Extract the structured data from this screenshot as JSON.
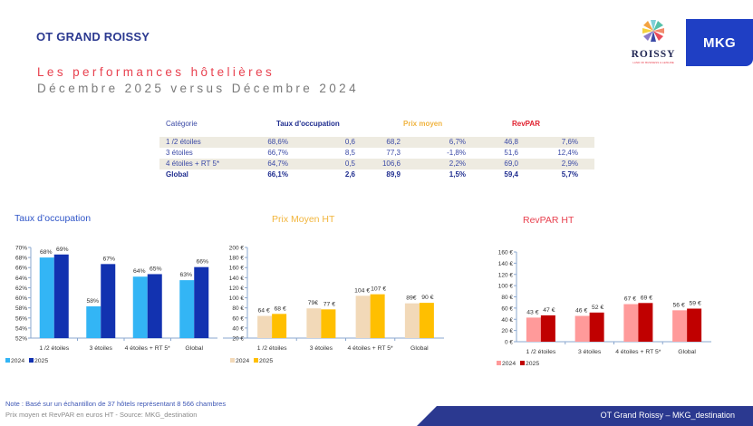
{
  "header": {
    "brand_title": "OT GRAND ROISSY",
    "subtitle_line1": "Les performances hôtelières",
    "subtitle_line2": "Décembre 2025 versus Décembre 2024"
  },
  "logos": {
    "roissy": {
      "name": "ROISSY",
      "tagline": "LAND OF BUSINESS & LEISURE"
    },
    "mkg": {
      "name": "MKG",
      "color": "#1f3fc4"
    }
  },
  "table": {
    "headers": {
      "category": "Catégorie",
      "occupancy": "Taux d'occupation",
      "avg_price": "Prix moyen",
      "revpar": "RevPAR"
    },
    "header_colors": {
      "occupancy": "#1f2d8f",
      "avg_price": "#f0b441",
      "revpar": "#e01f2d"
    },
    "rows": [
      {
        "category": "1 /2 étoiles",
        "occ": "68,6%",
        "occ_var": "0,6",
        "price": "68,2",
        "price_var": "6,7%",
        "revpar": "46,8",
        "revpar_var": "7,6%"
      },
      {
        "category": "3 étoiles",
        "occ": "66,7%",
        "occ_var": "8,5",
        "price": "77,3",
        "price_var": "-1,8%",
        "revpar": "51,6",
        "revpar_var": "12,4%"
      },
      {
        "category": "4 étoiles + RT 5*",
        "occ": "64,7%",
        "occ_var": "0,5",
        "price": "106,6",
        "price_var": "2,2%",
        "revpar": "69,0",
        "revpar_var": "2,9%"
      },
      {
        "category": "Global",
        "occ": "66,1%",
        "occ_var": "2,6",
        "price": "89,9",
        "price_var": "1,5%",
        "revpar": "59,4",
        "revpar_var": "5,7%"
      }
    ]
  },
  "chart_data": [
    {
      "type": "bar",
      "title": "Taux d’occupation",
      "title_color": "#2f55c8",
      "categories": [
        "1 /2 étoiles",
        "3 étoiles",
        "4 étoiles + RT 5*",
        "Global"
      ],
      "series": [
        {
          "name": "2024",
          "color": "#33b5f5",
          "values": [
            68,
            58,
            64,
            63
          ],
          "labels": [
            "68%",
            "58%",
            "64%",
            "63%"
          ],
          "plot_values": [
            68.0,
            58.3,
            64.2,
            63.5
          ]
        },
        {
          "name": "2025",
          "color": "#1232b0",
          "values": [
            69,
            67,
            65,
            66
          ],
          "labels": [
            "69%",
            "67%",
            "65%",
            "66%"
          ],
          "plot_values": [
            68.6,
            66.7,
            64.7,
            66.1
          ]
        }
      ],
      "ylim": [
        52,
        70
      ],
      "yticks": [
        "52%",
        "54%",
        "56%",
        "58%",
        "60%",
        "62%",
        "64%",
        "66%",
        "68%",
        "70%"
      ],
      "ytick_values": [
        52,
        54,
        56,
        58,
        60,
        62,
        64,
        66,
        68,
        70
      ],
      "legend": "bottom-left",
      "grid": false
    },
    {
      "type": "bar",
      "title": "Prix Moyen HT",
      "title_color": "#f2b53c",
      "categories": [
        "1 /2 étoiles",
        "3 étoiles",
        "4 étoiles + RT 5*",
        "Global"
      ],
      "series": [
        {
          "name": "2024",
          "color": "#f2d9b8",
          "values": [
            64,
            79,
            104,
            89
          ],
          "labels": [
            "64 €",
            "79€",
            "104 €",
            "89€"
          ]
        },
        {
          "name": "2025",
          "color": "#ffbf00",
          "values": [
            68,
            77,
            107,
            90
          ],
          "labels": [
            "68 €",
            "77 €",
            "107 €",
            "90 €"
          ]
        }
      ],
      "ylim": [
        20,
        200
      ],
      "yticks": [
        "20 €",
        "40 €",
        "60 €",
        "80 €",
        "100 €",
        "120 €",
        "140 €",
        "160 €",
        "180 €",
        "200 €"
      ],
      "ytick_values": [
        20,
        40,
        60,
        80,
        100,
        120,
        140,
        160,
        180,
        200
      ],
      "legend": "bottom-left",
      "grid": false
    },
    {
      "type": "bar",
      "title": "RevPAR HT",
      "title_color": "#e8414f",
      "categories": [
        "1 /2 étoiles",
        "3 étoiles",
        "4 étoiles + RT 5*",
        "Global"
      ],
      "series": [
        {
          "name": "2024",
          "color": "#ff9a9a",
          "values": [
            43,
            46,
            67,
            56
          ],
          "labels": [
            "43 €",
            "46 €",
            "67 €",
            "56 €"
          ]
        },
        {
          "name": "2025",
          "color": "#c00000",
          "values": [
            47,
            52,
            69,
            59
          ],
          "labels": [
            "47 €",
            "52 €",
            "69 €",
            "59 €"
          ]
        }
      ],
      "ylim": [
        0,
        160
      ],
      "yticks": [
        "0 €",
        "20 €",
        "40 €",
        "60 €",
        "80 €",
        "100 €",
        "120 €",
        "140 €",
        "160 €"
      ],
      "ytick_values": [
        0,
        20,
        40,
        60,
        80,
        100,
        120,
        140,
        160
      ],
      "legend": "bottom-left",
      "grid": false
    }
  ],
  "notes": {
    "line1": "Note : Basé sur un échantillon de 37 hôtels représentant 8 566 chambres",
    "line2": "Prix moyen et RevPAR en euros HT - Source: MKG_destination"
  },
  "footer": {
    "text": "OT Grand Roissy  – MKG_destination",
    "color": "#2b3990"
  }
}
